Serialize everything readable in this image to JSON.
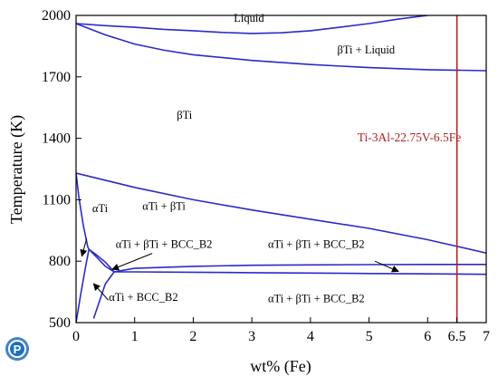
{
  "chart_data": {
    "type": "line",
    "title": "",
    "xlabel": "wt% (Fe)",
    "ylabel": "Temperature (K)",
    "xlim": [
      0,
      7
    ],
    "ylim": [
      500,
      2000
    ],
    "x_ticks": [
      0,
      1,
      2,
      3,
      4,
      5,
      6,
      6.5,
      7
    ],
    "x_tick_labels": [
      "0",
      "1",
      "2",
      "3",
      "4",
      "5",
      "6",
      "6.5",
      "7"
    ],
    "y_ticks": [
      500,
      800,
      1100,
      1400,
      1700,
      2000
    ],
    "y_tick_labels": [
      "500",
      "800",
      "1100",
      "1400",
      "1700",
      "2000"
    ],
    "grid": false,
    "line_color": "#2b2bc8",
    "series": [
      {
        "points": [
          [
            0,
            1960
          ],
          [
            0.5,
            1950
          ],
          [
            1,
            1942
          ],
          [
            1.5,
            1932
          ],
          [
            2,
            1925
          ],
          [
            2.5,
            1917
          ],
          [
            3,
            1912
          ],
          [
            3.5,
            1915
          ],
          [
            4,
            1925
          ],
          [
            4.5,
            1942
          ],
          [
            5,
            1960
          ],
          [
            5.5,
            1982
          ],
          [
            6.0,
            2000
          ]
        ]
      },
      {
        "points": [
          [
            0,
            1960
          ],
          [
            0.5,
            1905
          ],
          [
            1,
            1860
          ],
          [
            1.5,
            1830
          ],
          [
            2,
            1808
          ],
          [
            3,
            1780
          ],
          [
            4,
            1760
          ],
          [
            5,
            1745
          ],
          [
            6,
            1735
          ],
          [
            7,
            1730
          ]
        ]
      },
      {
        "points": [
          [
            0,
            1230
          ],
          [
            1,
            1160
          ],
          [
            2,
            1100
          ],
          [
            3,
            1050
          ],
          [
            4,
            1005
          ],
          [
            5,
            960
          ],
          [
            6,
            905
          ],
          [
            7,
            840
          ]
        ]
      },
      {
        "points": [
          [
            0,
            1230
          ],
          [
            0.05,
            1110
          ],
          [
            0.12,
            980
          ],
          [
            0.2,
            870
          ],
          [
            0.22,
            858
          ]
        ]
      },
      {
        "points": [
          [
            0,
            500
          ],
          [
            0.08,
            640
          ],
          [
            0.16,
            770
          ],
          [
            0.22,
            858
          ]
        ]
      },
      {
        "points": [
          [
            0.22,
            858
          ],
          [
            0.35,
            820
          ],
          [
            0.5,
            775
          ],
          [
            0.65,
            748
          ]
        ]
      },
      {
        "points": [
          [
            0.22,
            858
          ],
          [
            0.35,
            830
          ],
          [
            0.5,
            795
          ],
          [
            0.65,
            748
          ]
        ]
      },
      {
        "points": [
          [
            0.3,
            520
          ],
          [
            0.4,
            605
          ],
          [
            0.5,
            690
          ],
          [
            0.65,
            748
          ]
        ]
      },
      {
        "points": [
          [
            0.65,
            748
          ],
          [
            1,
            765
          ],
          [
            2,
            775
          ],
          [
            3,
            780
          ],
          [
            4,
            782
          ],
          [
            5,
            783
          ],
          [
            6,
            784
          ],
          [
            7,
            784
          ]
        ]
      },
      {
        "points": [
          [
            0.65,
            748
          ],
          [
            1,
            748
          ],
          [
            2,
            746
          ],
          [
            3,
            744
          ],
          [
            4,
            742
          ],
          [
            5,
            740
          ],
          [
            6,
            738
          ],
          [
            7,
            736
          ]
        ]
      }
    ],
    "vertical_line": {
      "x": 6.5,
      "color": "#b22222",
      "label": "Ti-3Al-22.75V-6.5Fe"
    },
    "region_labels": [
      {
        "text": "Liquid",
        "x": 2.95,
        "y": 1970
      },
      {
        "text": "βTi + Liquid",
        "x": 4.95,
        "y": 1815
      },
      {
        "text": "βTi",
        "x": 1.85,
        "y": 1495
      },
      {
        "text": "αTi",
        "x": 0.41,
        "y": 1040
      },
      {
        "text": "αTi + βTi",
        "x": 1.5,
        "y": 1050
      },
      {
        "text": "αTi + βTi + BCC_B2",
        "x": 1.5,
        "y": 865
      },
      {
        "text": "αTi + βTi + BCC_B2",
        "x": 4.1,
        "y": 865
      },
      {
        "text": "αTi + BCC_B2",
        "x": 1.15,
        "y": 607
      },
      {
        "text": "αTi + βTi + BCC_B2",
        "x": 4.1,
        "y": 600
      }
    ],
    "arrows": [
      {
        "from": [
          0.18,
          910
        ],
        "to": [
          0.1,
          825
        ]
      },
      {
        "from": [
          1.3,
          838
        ],
        "to": [
          0.62,
          760
        ]
      },
      {
        "from": [
          5.1,
          800
        ],
        "to": [
          5.5,
          750
        ]
      },
      {
        "from": [
          0.55,
          610
        ],
        "to": [
          0.3,
          690
        ]
      }
    ]
  },
  "logo": {
    "letter": "P",
    "color": "#1f6fc0"
  }
}
